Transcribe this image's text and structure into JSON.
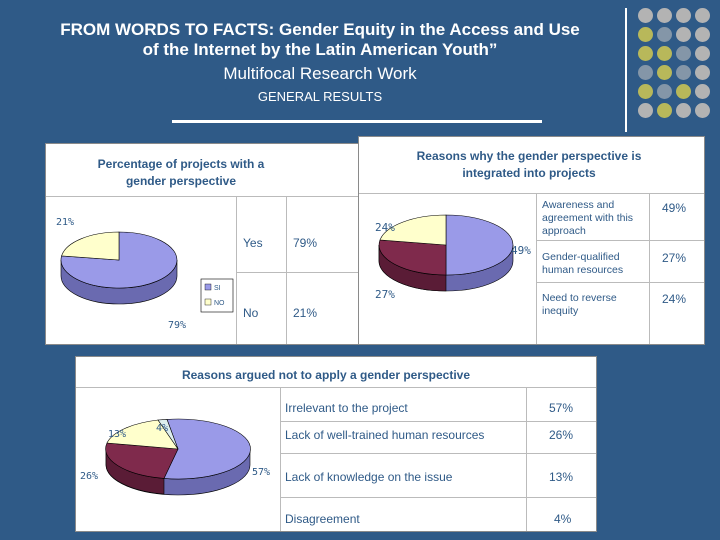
{
  "header": {
    "title_line1": "FROM WORDS TO FACTS: Gender Equity in the Access and Use",
    "title_line2": "of the Internet by the Latin American Youth”",
    "subtitle": "Multifocal Research Work",
    "section": "GENERAL RESULTS"
  },
  "colors": {
    "background": "#2f5a87",
    "pie_purple": "#9a9ae8",
    "pie_cream": "#ffffcc",
    "pie_maroon": "#7f2a4c",
    "dot_gray": "#b3b3b3",
    "dot_olive": "#b8b85a",
    "dot_slate": "#8496a8"
  },
  "panel_percentage": {
    "title": "Percentage of projects with a gender perspective",
    "legend": [
      "SI",
      "NO"
    ],
    "rows": [
      {
        "label": "Yes",
        "value": "79%"
      },
      {
        "label": "No",
        "value": "21%"
      }
    ],
    "pie_labels": {
      "no": "21%",
      "yes": "79%"
    }
  },
  "panel_reasons": {
    "title": "Reasons why the gender perspective is integrated into projects",
    "rows": [
      {
        "label": "Awareness and agreement with this approach",
        "value": "49%"
      },
      {
        "label": "Gender-qualified human resources",
        "value": "27%"
      },
      {
        "label": "Need to reverse inequity",
        "value": "24%"
      }
    ],
    "pie_labels": {
      "a": "24%",
      "b": "49%",
      "c": "27%"
    }
  },
  "panel_not": {
    "title": "Reasons argued not to apply a gender perspective",
    "rows": [
      {
        "label": "Irrelevant to the project",
        "value": "57%"
      },
      {
        "label": "Lack of well-trained human resources",
        "value": "26%"
      },
      {
        "label": "Lack of knowledge on the issue",
        "value": "13%"
      },
      {
        "label": "Disagreement",
        "value": "4%"
      }
    ],
    "pie_labels": {
      "a": "13%",
      "b": "4%",
      "c": "26%",
      "d": "57%"
    }
  },
  "chart_data": [
    {
      "type": "pie",
      "title": "Percentage of projects with a gender perspective",
      "categories": [
        "SI",
        "NO"
      ],
      "values": [
        79,
        21
      ]
    },
    {
      "type": "pie",
      "title": "Reasons why the gender perspective is integrated into projects",
      "categories": [
        "Awareness and agreement with this approach",
        "Gender-qualified human resources",
        "Need to reverse inequity"
      ],
      "values": [
        49,
        27,
        24
      ]
    },
    {
      "type": "pie",
      "title": "Reasons argued not to apply a gender perspective",
      "categories": [
        "Irrelevant to the project",
        "Lack of well-trained human resources",
        "Lack of knowledge on the issue",
        "Disagreement"
      ],
      "values": [
        57,
        26,
        13,
        4
      ]
    }
  ]
}
